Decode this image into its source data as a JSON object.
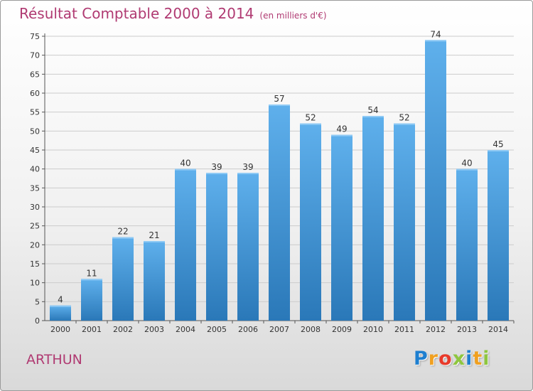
{
  "title": "Résultat Comptable 2000 à 2014",
  "unit_note": "(en milliers d'€)",
  "commune": "ARTHUN",
  "logo": {
    "letters": [
      {
        "ch": "P",
        "color": "#1e7fd0"
      },
      {
        "ch": "r",
        "color": "#f0a020"
      },
      {
        "ch": "o",
        "color": "#e83a2a"
      },
      {
        "ch": "x",
        "color": "#8ec63f"
      },
      {
        "ch": "i",
        "color": "#1e7fd0"
      },
      {
        "ch": "t",
        "color": "#f0a020"
      },
      {
        "ch": "i",
        "color": "#8ec63f"
      }
    ]
  },
  "colors": {
    "title": "#b03a72",
    "bar_top": "#5fb0ec",
    "bar_bottom": "#2a78b8",
    "grid": "#cccccc"
  },
  "chart_data": {
    "type": "bar",
    "categories": [
      "2000",
      "2001",
      "2002",
      "2003",
      "2004",
      "2005",
      "2006",
      "2007",
      "2008",
      "2009",
      "2010",
      "2011",
      "2012",
      "2013",
      "2014"
    ],
    "values": [
      4,
      11,
      22,
      21,
      40,
      39,
      39,
      57,
      52,
      49,
      54,
      52,
      74,
      40,
      45
    ],
    "title": "Résultat Comptable 2000 à 2014",
    "xlabel": "",
    "ylabel": "",
    "ylim": [
      0,
      75
    ],
    "yticks": [
      0,
      5,
      10,
      15,
      20,
      25,
      30,
      35,
      40,
      45,
      50,
      55,
      60,
      65,
      70,
      75
    ],
    "grid": true,
    "data_labels": true
  }
}
